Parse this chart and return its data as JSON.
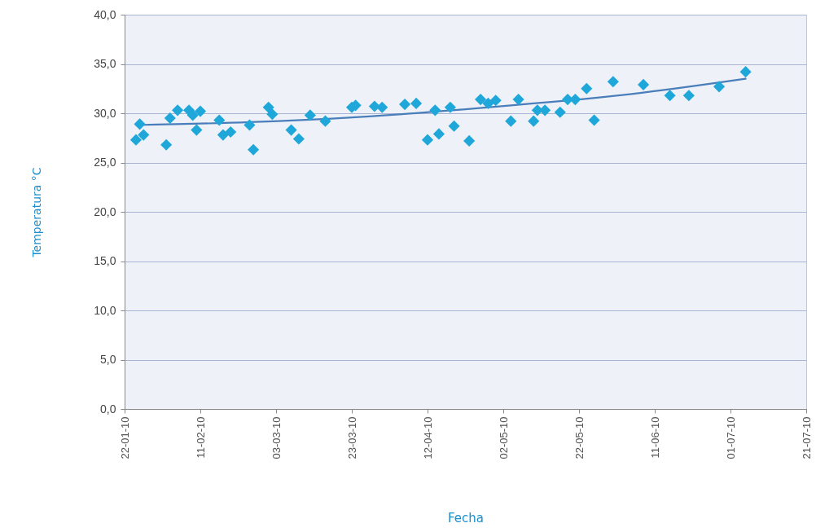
{
  "chart_data": {
    "type": "scatter",
    "xlabel": "Fecha",
    "ylabel": "Temperatura °C",
    "xlim": [
      "2010-01-22",
      "2010-07-21"
    ],
    "xticks": [
      {
        "value": "2010-01-22",
        "label": "22-01-10"
      },
      {
        "value": "2010-02-11",
        "label": "11-02-10"
      },
      {
        "value": "2010-03-03",
        "label": "03-03-10"
      },
      {
        "value": "2010-03-23",
        "label": "23-03-10"
      },
      {
        "value": "2010-04-12",
        "label": "12-04-10"
      },
      {
        "value": "2010-05-02",
        "label": "02-05-10"
      },
      {
        "value": "2010-05-22",
        "label": "22-05-10"
      },
      {
        "value": "2010-06-11",
        "label": "11-06-10"
      },
      {
        "value": "2010-07-01",
        "label": "01-07-10"
      },
      {
        "value": "2010-07-21",
        "label": "21-07-10"
      }
    ],
    "ylim": [
      0,
      40
    ],
    "yticks": [
      {
        "value": 0,
        "label": "0,0"
      },
      {
        "value": 5,
        "label": "5,0"
      },
      {
        "value": 10,
        "label": "10,0"
      },
      {
        "value": 15,
        "label": "15,0"
      },
      {
        "value": 20,
        "label": "20,0"
      },
      {
        "value": 25,
        "label": "25,0"
      },
      {
        "value": 30,
        "label": "30,0"
      },
      {
        "value": 35,
        "label": "35,0"
      },
      {
        "value": 40,
        "label": "40,0"
      }
    ],
    "grid": "y",
    "marker": "diamond",
    "series": [
      {
        "color": "#1fa7da",
        "x": [
          "2010-01-25",
          "2010-01-26",
          "2010-01-27",
          "2010-02-02",
          "2010-02-03",
          "2010-02-05",
          "2010-02-08",
          "2010-02-09",
          "2010-02-10",
          "2010-02-11",
          "2010-02-16",
          "2010-02-17",
          "2010-02-19",
          "2010-02-24",
          "2010-02-25",
          "2010-03-01",
          "2010-03-02",
          "2010-03-07",
          "2010-03-09",
          "2010-03-12",
          "2010-03-16",
          "2010-03-23",
          "2010-03-24",
          "2010-03-29",
          "2010-03-31",
          "2010-04-06",
          "2010-04-09",
          "2010-04-12",
          "2010-04-14",
          "2010-04-15",
          "2010-04-18",
          "2010-04-19",
          "2010-04-23",
          "2010-04-26",
          "2010-04-28",
          "2010-04-30",
          "2010-05-04",
          "2010-05-06",
          "2010-05-10",
          "2010-05-11",
          "2010-05-13",
          "2010-05-17",
          "2010-05-19",
          "2010-05-21",
          "2010-05-24",
          "2010-05-26",
          "2010-05-31",
          "2010-06-08",
          "2010-06-15",
          "2010-06-20",
          "2010-06-28",
          "2010-07-05"
        ],
        "values": [
          27.3,
          28.9,
          27.8,
          26.8,
          29.5,
          30.3,
          30.3,
          29.8,
          28.3,
          30.2,
          29.3,
          27.8,
          28.1,
          28.8,
          26.3,
          30.6,
          29.9,
          28.3,
          27.4,
          29.8,
          29.2,
          30.6,
          30.8,
          30.7,
          30.6,
          30.9,
          31.0,
          27.3,
          30.3,
          27.9,
          30.6,
          28.7,
          27.2,
          31.4,
          31.0,
          31.3,
          29.2,
          31.4,
          29.2,
          30.3,
          30.3,
          30.1,
          31.4,
          31.4,
          32.5,
          29.3,
          33.2,
          32.9,
          31.8,
          31.8,
          32.7,
          34.2
        ]
      },
      {
        "type": "line",
        "color": "#4a7ebb",
        "marker": "none",
        "line_style": "solid",
        "x": [
          "2010-01-25",
          "2010-02-24",
          "2010-03-24",
          "2010-04-22",
          "2010-05-10",
          "2010-05-22",
          "2010-06-08",
          "2010-07-05"
        ],
        "values": [
          28.8,
          29.1,
          29.6,
          30.4,
          31.0,
          31.4,
          32.1,
          33.5
        ]
      }
    ]
  }
}
